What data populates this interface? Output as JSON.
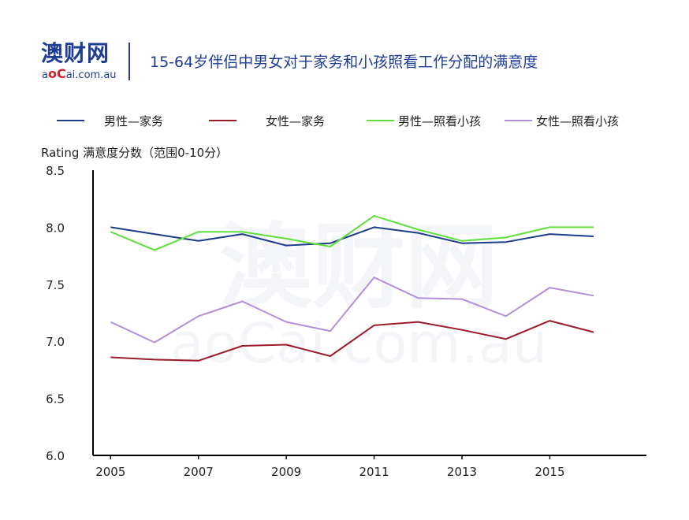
{
  "header": {
    "logo_cn": "澳财网",
    "logo_en_a": "a",
    "logo_en_o": "o",
    "logo_en_c": "C",
    "logo_en_rest": "ai.com.au",
    "title": "15-64岁伴侣中男女对于家务和小孩照看工作分配的满意度"
  },
  "watermark": {
    "cn": "澳财网",
    "en": "aoCai.com.au"
  },
  "chart_data": {
    "type": "line",
    "title": "15-64岁伴侣中男女对于家务和小孩照看工作分配的满意度",
    "ylabel": "Rating  满意度分数（范围0-10分）",
    "xlabel": "",
    "x": [
      2005,
      2006,
      2007,
      2008,
      2009,
      2010,
      2011,
      2012,
      2013,
      2014,
      2015,
      2016
    ],
    "x_tick_labels": [
      "2005",
      "2007",
      "2009",
      "2011",
      "2013",
      "2015"
    ],
    "y_tick_labels": [
      "6.0",
      "6.5",
      "7.0",
      "7.5",
      "8.0",
      "8.5"
    ],
    "ylim": [
      6.0,
      8.5
    ],
    "xlim": [
      2004.6,
      2017.2
    ],
    "legend_position": "top",
    "grid": false,
    "series": [
      {
        "name": "男性—家务",
        "color": "#1f3c88",
        "values": [
          8.0,
          7.94,
          7.88,
          7.94,
          7.84,
          7.86,
          8.0,
          7.95,
          7.86,
          7.87,
          7.94,
          7.92
        ]
      },
      {
        "name": "女性—家务",
        "color": "#9b1b2a",
        "values": [
          6.86,
          6.84,
          6.83,
          6.96,
          6.97,
          6.87,
          7.14,
          7.17,
          7.1,
          7.02,
          7.18,
          7.08
        ]
      },
      {
        "name": "男性—照看小孩",
        "color": "#5ee03a",
        "values": [
          7.96,
          7.8,
          7.96,
          7.96,
          7.9,
          7.83,
          8.1,
          7.98,
          7.88,
          7.91,
          8.0,
          8.0
        ]
      },
      {
        "name": "女性—照看小孩",
        "color": "#b28fda",
        "values": [
          7.17,
          6.99,
          7.22,
          7.35,
          7.17,
          7.09,
          7.56,
          7.38,
          7.37,
          7.22,
          7.47,
          7.4
        ]
      }
    ]
  }
}
